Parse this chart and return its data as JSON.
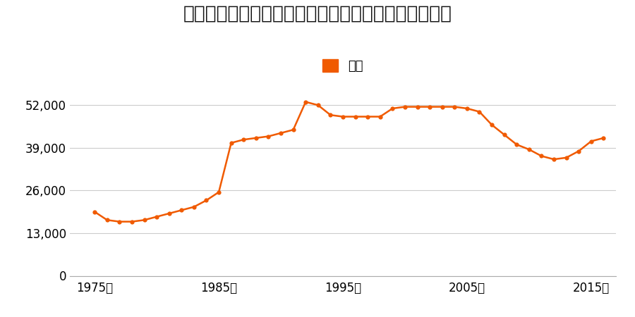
{
  "title": "宮城県宮城郡利府町菅谷字産野原１４番１の地価推移",
  "legend_label": "価格",
  "line_color": "#F05A00",
  "marker_color": "#F05A00",
  "background_color": "#ffffff",
  "grid_color": "#cccccc",
  "ylabel_ticks": [
    0,
    13000,
    26000,
    39000,
    52000
  ],
  "xtick_labels": [
    "1975年",
    "1985年",
    "1995年",
    "2005年",
    "2015年"
  ],
  "xtick_positions": [
    1975,
    1985,
    1995,
    2005,
    2015
  ],
  "ylim": [
    0,
    57000
  ],
  "xlim": [
    1973,
    2017
  ],
  "years": [
    1975,
    1976,
    1977,
    1978,
    1979,
    1980,
    1981,
    1982,
    1983,
    1984,
    1985,
    1986,
    1987,
    1988,
    1989,
    1990,
    1991,
    1992,
    1993,
    1994,
    1995,
    1996,
    1997,
    1998,
    1999,
    2000,
    2001,
    2002,
    2003,
    2004,
    2005,
    2006,
    2007,
    2008,
    2009,
    2010,
    2011,
    2012,
    2013,
    2014,
    2015,
    2016
  ],
  "prices": [
    19500,
    17000,
    16500,
    16500,
    17000,
    18000,
    19000,
    20000,
    21000,
    23000,
    25500,
    40500,
    41500,
    42000,
    42500,
    43500,
    44500,
    53000,
    52000,
    49000,
    48500,
    48500,
    48500,
    48500,
    51000,
    51500,
    51500,
    51500,
    51500,
    51500,
    51000,
    50000,
    46000,
    43000,
    40000,
    38500,
    36500,
    35500,
    36000,
    38000,
    41000,
    42000
  ]
}
